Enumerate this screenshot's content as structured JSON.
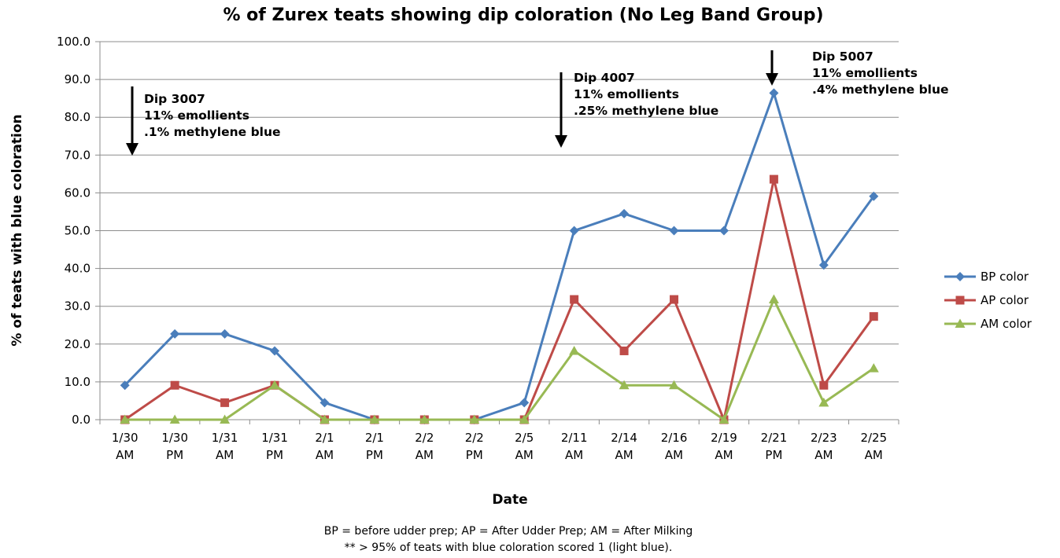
{
  "chart_data": {
    "type": "line",
    "title": "% of Zurex teats showing dip coloration (No Leg Band Group)",
    "xlabel": "Date",
    "ylabel": "% of teats with blue coloration",
    "ylim": [
      0,
      100
    ],
    "y_ticks": [
      "0.0",
      "10.0",
      "20.0",
      "30.0",
      "40.0",
      "50.0",
      "60.0",
      "70.0",
      "80.0",
      "90.0",
      "100.0"
    ],
    "grid": true,
    "legend_position": "right",
    "categories": [
      [
        "1/30",
        "AM"
      ],
      [
        "1/30",
        "PM"
      ],
      [
        "1/31",
        "AM"
      ],
      [
        "1/31",
        "PM"
      ],
      [
        "2/1",
        "AM"
      ],
      [
        "2/1",
        "PM"
      ],
      [
        "2/2",
        "AM"
      ],
      [
        "2/2",
        "PM"
      ],
      [
        "2/5",
        "AM"
      ],
      [
        "2/11",
        "AM"
      ],
      [
        "2/14",
        "AM"
      ],
      [
        "2/16",
        "AM"
      ],
      [
        "2/19",
        "AM"
      ],
      [
        "2/21",
        "PM"
      ],
      [
        "2/23",
        "AM"
      ],
      [
        "2/25",
        "AM"
      ]
    ],
    "series": [
      {
        "name": "BP color",
        "color": "#4a7ebb",
        "marker": "diamond",
        "values": [
          9.1,
          22.7,
          22.7,
          18.2,
          4.5,
          0,
          0,
          0,
          4.5,
          50.0,
          54.5,
          50.0,
          50.0,
          86.4,
          40.9,
          59.1
        ]
      },
      {
        "name": "AP color",
        "color": "#be4b48",
        "marker": "square",
        "values": [
          0,
          9.1,
          4.5,
          9.1,
          0,
          0,
          0,
          0,
          0,
          31.8,
          18.2,
          31.8,
          0,
          63.6,
          9.1,
          27.3
        ]
      },
      {
        "name": "AM color",
        "color": "#98b954",
        "marker": "triangle",
        "values": [
          0,
          0,
          0,
          9.1,
          0,
          0,
          0,
          0,
          0,
          18.2,
          9.1,
          9.1,
          0,
          31.8,
          4.5,
          13.6
        ]
      }
    ],
    "annotations": [
      {
        "id": "dip3007",
        "lines": [
          "Dip 3007",
          "11% emollients",
          ".1% methylene blue"
        ]
      },
      {
        "id": "dip4007",
        "lines": [
          "Dip 4007",
          "11% emollients",
          ".25% methylene blue"
        ]
      },
      {
        "id": "dip5007",
        "lines": [
          "Dip 5007",
          "11% emollients",
          ".4% methylene blue"
        ]
      }
    ],
    "footnotes": [
      "BP = before udder prep; AP = After Udder Prep; AM = After Milking",
      "** > 95% of teats with blue coloration scored 1 (light blue)."
    ]
  }
}
